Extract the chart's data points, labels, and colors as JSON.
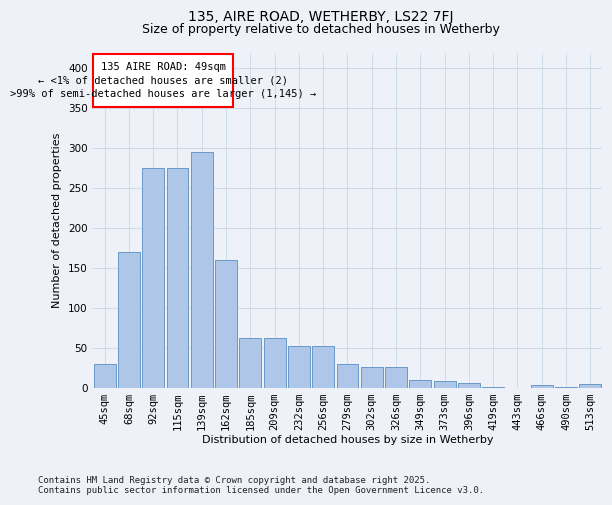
{
  "title": "135, AIRE ROAD, WETHERBY, LS22 7FJ",
  "subtitle": "Size of property relative to detached houses in Wetherby",
  "xlabel": "Distribution of detached houses by size in Wetherby",
  "ylabel": "Number of detached properties",
  "categories": [
    "45sqm",
    "68sqm",
    "92sqm",
    "115sqm",
    "139sqm",
    "162sqm",
    "185sqm",
    "209sqm",
    "232sqm",
    "256sqm",
    "279sqm",
    "302sqm",
    "326sqm",
    "349sqm",
    "373sqm",
    "396sqm",
    "419sqm",
    "443sqm",
    "466sqm",
    "490sqm",
    "513sqm"
  ],
  "values": [
    30,
    170,
    275,
    275,
    295,
    160,
    62,
    62,
    52,
    52,
    30,
    26,
    26,
    10,
    8,
    6,
    1,
    0,
    3,
    1,
    4
  ],
  "bar_color": "#aec6e8",
  "bar_edge_color": "#5a8fc2",
  "annotation_text_line1": "135 AIRE ROAD: 49sqm",
  "annotation_text_line2": "← <1% of detached houses are smaller (2)",
  "annotation_text_line3": ">99% of semi-detached houses are larger (1,145) →",
  "ylim": [
    0,
    420
  ],
  "yticks": [
    0,
    50,
    100,
    150,
    200,
    250,
    300,
    350,
    400
  ],
  "grid_color": "#c8d8e8",
  "background_color": "#eef2f8",
  "footer": "Contains HM Land Registry data © Crown copyright and database right 2025.\nContains public sector information licensed under the Open Government Licence v3.0.",
  "title_fontsize": 10,
  "subtitle_fontsize": 9,
  "axis_label_fontsize": 8,
  "tick_fontsize": 7.5,
  "annotation_fontsize": 7.5,
  "footer_fontsize": 6.5
}
